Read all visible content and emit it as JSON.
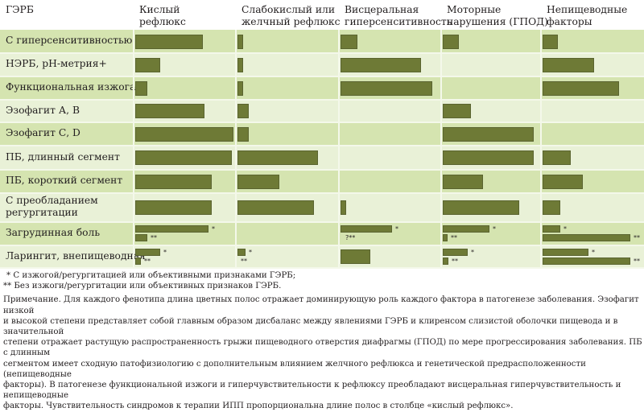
{
  "chart_data": {
    "type": "table",
    "title": "",
    "row_header": "ГЭРБ",
    "columns": [
      "Кислый рефлюкс",
      "Слабокислый или желчный рефлюкс",
      "Висцеральная гиперсенситивность",
      "Моторные нарушения (ГПОД)",
      "Непищеводные факторы"
    ],
    "column_header_lines": [
      [
        "Кислый",
        "рефлюкс"
      ],
      [
        "Слабокислый или",
        "желчный рефлюкс"
      ],
      [
        "Висцеральная",
        "гиперсенситивность"
      ],
      [
        "Моторные",
        "нарушения (ГПОД)"
      ],
      [
        "Непищеводные",
        "факторы"
      ]
    ],
    "value_scale": "relative bar length, 0–1 (1 = full cell width)",
    "rows": [
      {
        "label": "С гиперсенситивностью",
        "lines": [
          "С гиперсенситивностью"
        ],
        "values": [
          [
            0.68
          ],
          [
            0.06
          ],
          [
            0.17
          ],
          [
            0.16
          ],
          [
            0.15
          ]
        ]
      },
      {
        "label": "НЭРБ, pH-метрия+",
        "lines": [
          "НЭРБ, pH-метрия+"
        ],
        "values": [
          [
            0.25
          ],
          [
            0.06
          ],
          [
            0.81
          ],
          [],
          [
            0.52
          ]
        ]
      },
      {
        "label": "Функциональная изжога",
        "lines": [
          "Функциональная изжога"
        ],
        "values": [
          [
            0.12
          ],
          [
            0.06
          ],
          [
            0.92
          ],
          [],
          [
            0.77
          ]
        ]
      },
      {
        "label": "Эзофагит А, В",
        "lines": [
          "Эзофагит А, В"
        ],
        "values": [
          [
            0.69
          ],
          [
            0.11
          ],
          [],
          [
            0.28
          ],
          []
        ]
      },
      {
        "label": "Эзофагит С, D",
        "lines": [
          "Эзофагит С, D"
        ],
        "values": [
          [
            0.98
          ],
          [
            0.11
          ],
          [],
          [
            0.91
          ],
          []
        ]
      },
      {
        "label": "ПБ, длинный сегмент",
        "lines": [
          "ПБ, длинный сегмент"
        ],
        "values": [
          [
            0.97
          ],
          [
            0.81
          ],
          [],
          [
            0.91
          ],
          [
            0.28
          ]
        ]
      },
      {
        "label": "ПБ, короткий сегмент",
        "lines": [
          "ПБ, короткий сегмент"
        ],
        "values": [
          [
            0.77
          ],
          [
            0.42
          ],
          [],
          [
            0.4
          ],
          [
            0.4
          ]
        ]
      },
      {
        "label": "С преобладанием регургитации",
        "lines": [
          "С преобладанием",
          "регургитации"
        ],
        "values": [
          [
            0.77
          ],
          [
            0.77
          ],
          [
            0.06
          ],
          [
            0.77
          ],
          [
            0.18
          ]
        ]
      },
      {
        "label": "Загрудинная боль",
        "lines": [
          "Загрудинная боль"
        ],
        "values": [
          [
            0.73,
            0.12
          ],
          [],
          [
            0.52,
            null
          ],
          [
            0.47,
            0.05
          ],
          [
            0.18,
            0.88
          ]
        ],
        "marks": [
          [
            "*",
            "**"
          ],
          [],
          [
            "*",
            "?**"
          ],
          [
            "*",
            "**"
          ],
          [
            "*",
            "**"
          ]
        ]
      },
      {
        "label": "Ларингит, внепищеводная",
        "lines": [
          "Ларингит, внепищеводная"
        ],
        "values": [
          [
            0.25,
            0.06
          ],
          [
            0.08,
            0
          ],
          [
            0.3
          ],
          [
            0.25,
            0.06
          ],
          [
            0.46,
            0.88
          ]
        ],
        "marks": [
          [
            "*",
            "**"
          ],
          [
            "*",
            "**"
          ],
          [],
          [
            "*",
            "**"
          ],
          [
            "*",
            "**"
          ]
        ]
      }
    ]
  },
  "footnotes": [
    "* С изжогой/регургитацией или объективными признаками ГЭРБ;",
    "** Без изжоги/регургитации или объективных признаков ГЭРБ."
  ],
  "note_lines": [
    "Примечание. Для каждого фенотипа длина цветных полос отражает доминирующую роль каждого фактора в патогенезе заболевания. Эзофагит низкой",
    "и высокой степени представляет собой главным образом дисбаланс между явлениями ГЭРБ и клиренсом слизистой оболочки пищевода и в значительной",
    "степени отражает растущую распространенность грыжи пищеводного отверстия диафрагмы (ГПОД) по мере прогрессирования заболевания. ПБ с длинным",
    "сегментом имеет сходную патофизиологию с дополнительным влиянием желчного рефлюкса и генетической предрасположенности (непищеводные",
    "факторы). В патогенезе функциональной изжоги и гиперчувствительности к рефлюксу преобладают висцеральная гиперчувствительность и непищеводные",
    "факторы. Чувствительность синдромов к терапии ИПП пропорциональна длине полос в столбце «кислый рефлюкс»."
  ],
  "colors": {
    "bar": "#6e7a36",
    "row_odd": "#d5e4b0",
    "row_even": "#e9f1d7",
    "grid_line": "#f4f8ea",
    "text": "#231f20"
  }
}
